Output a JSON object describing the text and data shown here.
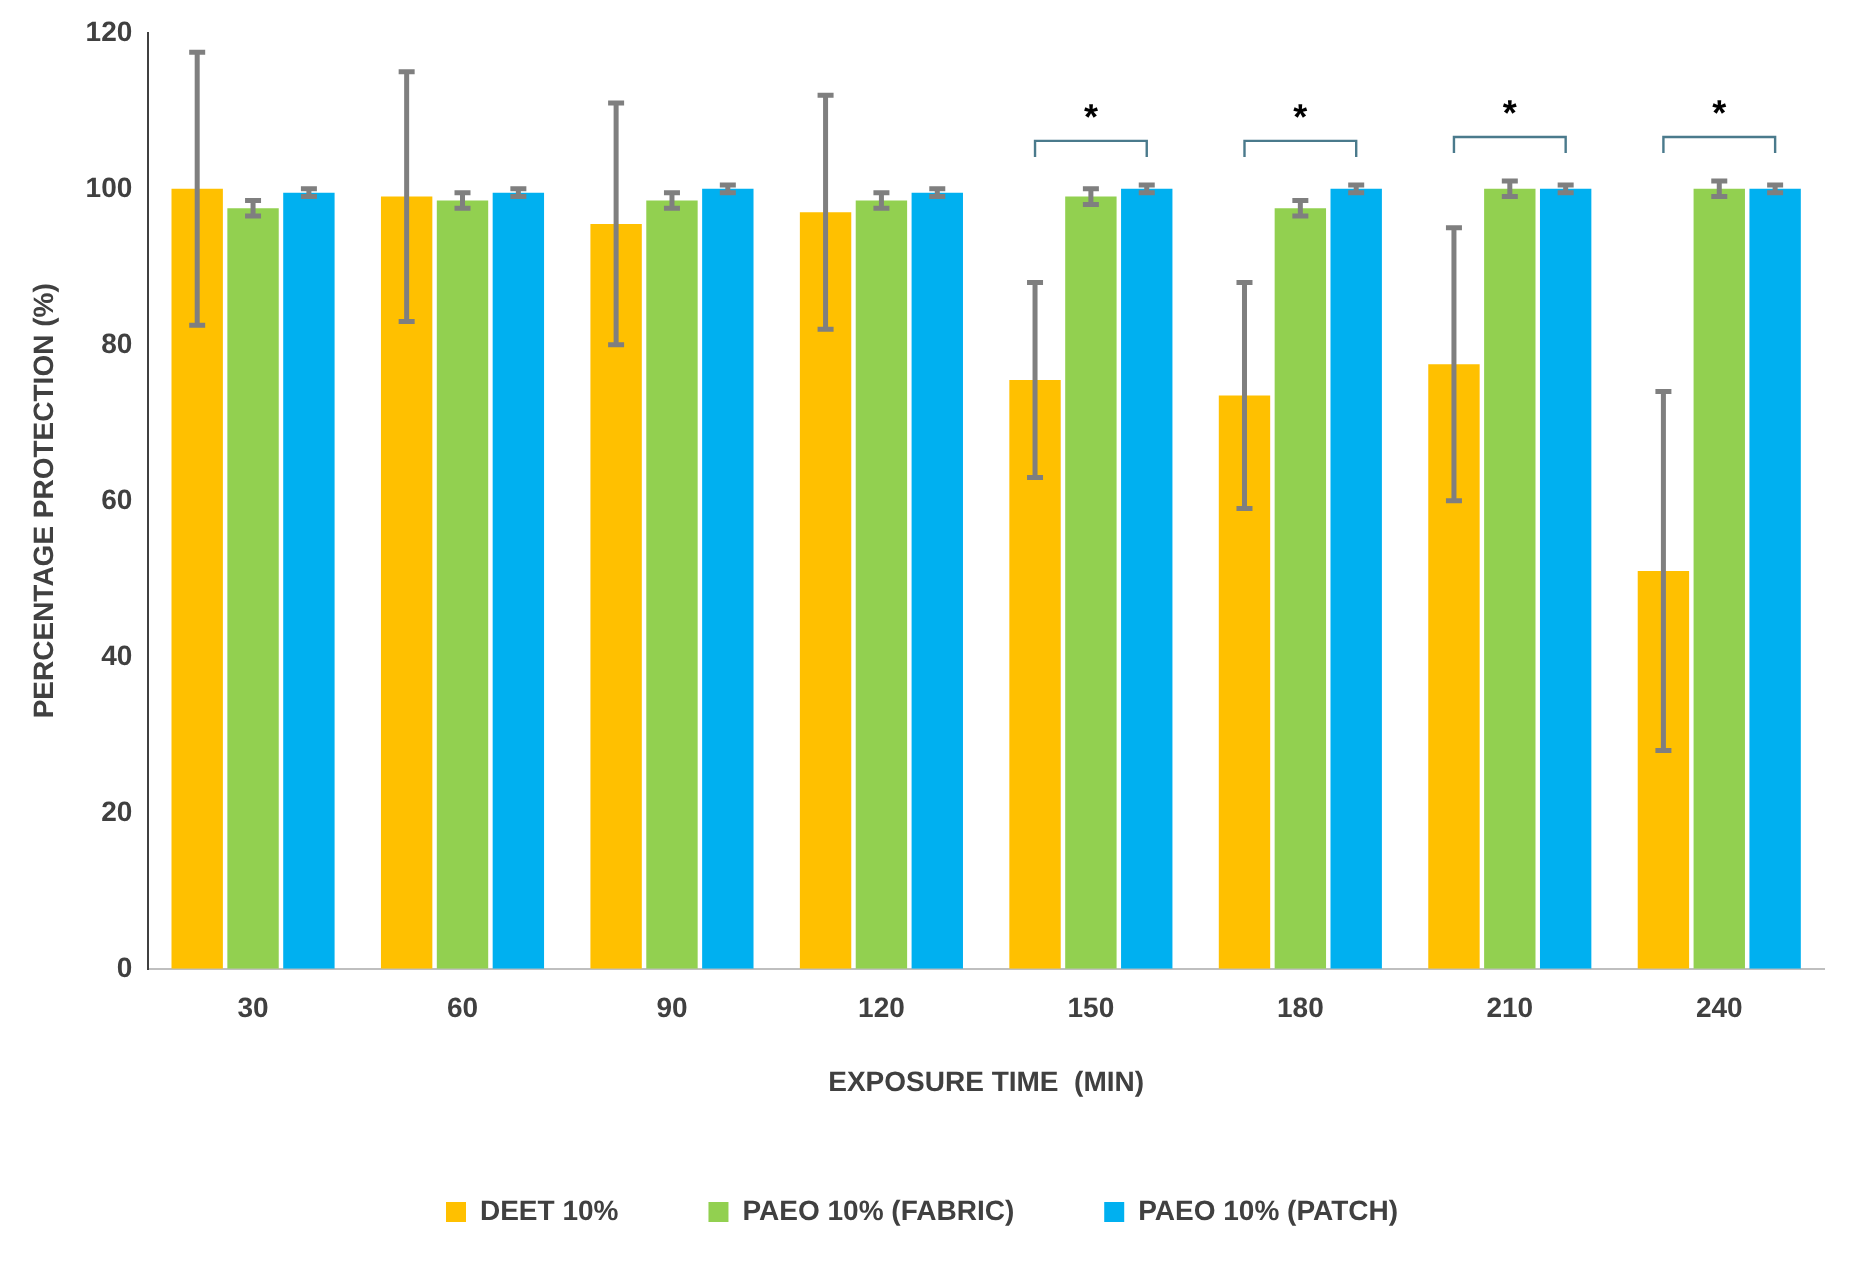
{
  "chart_data": {
    "type": "bar",
    "xlabel": "EXPOSURE TIME  (MIN)",
    "ylabel": "PERCENTAGE PROTECTION (%)",
    "categories": [
      "30",
      "60",
      "90",
      "120",
      "150",
      "180",
      "210",
      "240"
    ],
    "series": [
      {
        "name": "DEET 10%",
        "color": "#ffc000",
        "values": [
          100,
          99,
          95.5,
          97,
          75.5,
          73.5,
          77.5,
          51
        ],
        "errors": [
          17.5,
          16,
          15.5,
          15,
          12.5,
          14.5,
          17.5,
          23
        ]
      },
      {
        "name": "PAEO 10% (FABRIC)",
        "color": "#92d050",
        "values": [
          97.5,
          98.5,
          98.5,
          98.5,
          99,
          97.5,
          100,
          100
        ],
        "errors": [
          1,
          1,
          1,
          1,
          1,
          1,
          1,
          1
        ]
      },
      {
        "name": "PAEO 10% (PATCH)",
        "color": "#00b0f0",
        "values": [
          99.5,
          99.5,
          100,
          99.5,
          100,
          100,
          100,
          100
        ],
        "errors": [
          0.5,
          0.5,
          0.5,
          0.5,
          0.5,
          0.5,
          0.5,
          0.5
        ]
      }
    ],
    "ylim": [
      0,
      120
    ],
    "yticks": [
      0,
      20,
      40,
      60,
      80,
      100,
      120
    ],
    "grid": false,
    "legend": "bottom",
    "annotations": [
      "*",
      "*",
      "*",
      "*"
    ]
  }
}
